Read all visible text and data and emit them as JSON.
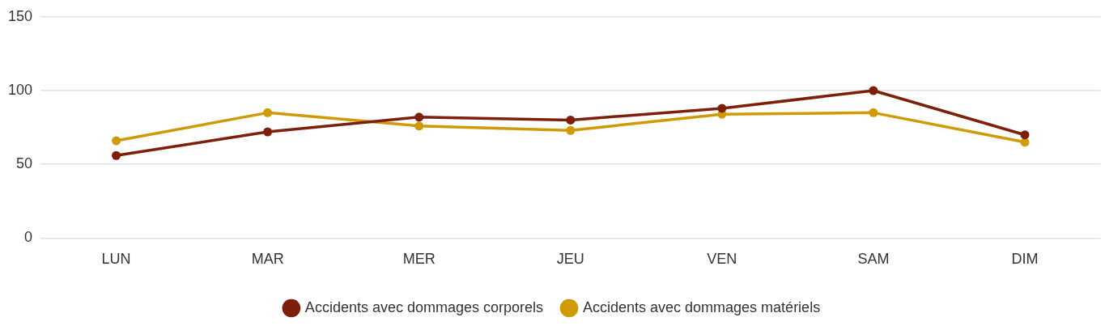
{
  "chart_data": {
    "type": "line",
    "categories": [
      "LUN",
      "MAR",
      "MER",
      "JEU",
      "VEN",
      "SAM",
      "DIM"
    ],
    "series": [
      {
        "name": "Accidents avec dommages corporels",
        "color": "#7d1f0a",
        "values": [
          56,
          72,
          82,
          80,
          88,
          100,
          70
        ]
      },
      {
        "name": "Accidents avec dommages matériels",
        "color": "#cf9a05",
        "values": [
          66,
          85,
          76,
          73,
          84,
          85,
          65
        ]
      }
    ],
    "ylim": [
      0,
      150
    ],
    "yticks": [
      0,
      50,
      100,
      150
    ],
    "grid": "y",
    "legend": "bottom",
    "marker": "circle",
    "line_style": "solid"
  }
}
